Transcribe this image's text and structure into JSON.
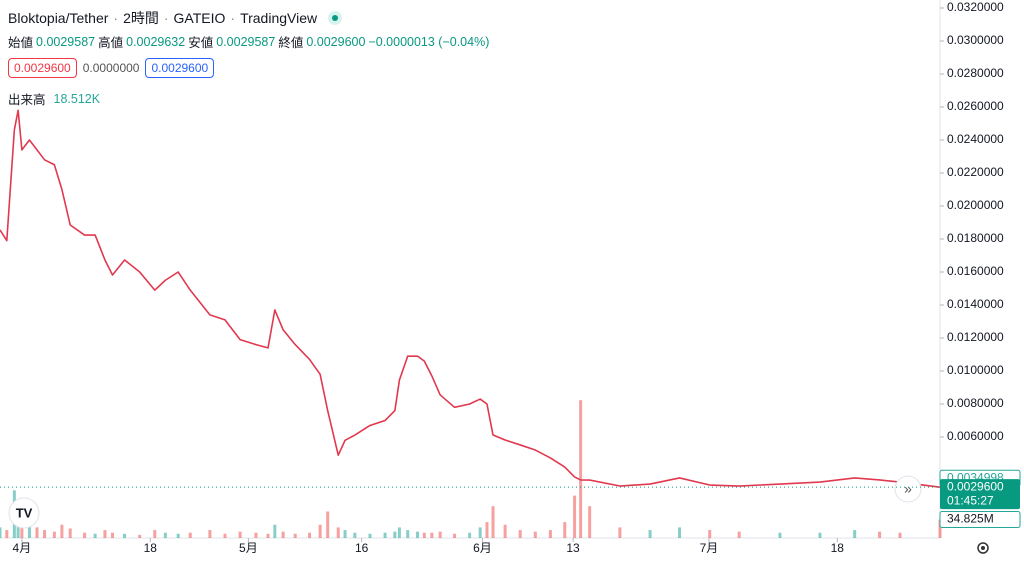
{
  "chart_data": {
    "type": "line",
    "header": {
      "symbol": "Bloktopia/Tether",
      "interval": "2時間",
      "exchange": "GATEIO",
      "source": "TradingView",
      "open_label": "始値",
      "open": "0.0029587",
      "high_label": "高値",
      "high": "0.0029632",
      "low_label": "安値",
      "low": "0.0029587",
      "close_label": "終値",
      "close": "0.0029600",
      "change": "−0.0000013 (−0.04%)",
      "bid": "0.0029600",
      "spread": "0.0000000",
      "ask": "0.0029600",
      "volume_label": "出来高",
      "volume": "18.512K"
    },
    "x": [
      -2.9,
      -2,
      -1,
      -0.5,
      0,
      1,
      2,
      3,
      4.3,
      5.3,
      6.4,
      8.3,
      9.7,
      11,
      12,
      13.6,
      15.6,
      17.6,
      19,
      20.7,
      22.3,
      24.9,
      26.9,
      28.9,
      31,
      32.6,
      33.5,
      34.6,
      36.2,
      38.1,
      39.5,
      40.5,
      41.9,
      42.8,
      44.1,
      46.1,
      48.1,
      49.4,
      50,
      51.1,
      52.4,
      53.3,
      54.3,
      55.4,
      57.3,
      59.3,
      60.7,
      61.6,
      62.4,
      64,
      66,
      68,
      70,
      71.9,
      73.2,
      74,
      75.2,
      79.2,
      83.2,
      87.1,
      91.1,
      95,
      100.4,
      105.7,
      110.3,
      113.6,
      116.3,
      121.6
    ],
    "series": [
      {
        "name": "Price",
        "color": "#e0394f",
        "values": [
          0.01855,
          0.0179,
          0.0246,
          0.0258,
          0.0234,
          0.024,
          0.0234,
          0.0228,
          0.0225,
          0.021,
          0.01885,
          0.01824,
          0.01824,
          0.01673,
          0.01582,
          0.01673,
          0.016,
          0.0149,
          0.0155,
          0.016,
          0.0149,
          0.0134,
          0.0131,
          0.0119,
          0.0116,
          0.0114,
          0.0137,
          0.0125,
          0.0116,
          0.0107,
          0.0098,
          0.0076,
          0.0049,
          0.0058,
          0.00612,
          0.0067,
          0.007,
          0.0076,
          0.00945,
          0.0109,
          0.0109,
          0.0106,
          0.0097,
          0.00855,
          0.0078,
          0.008,
          0.0083,
          0.008,
          0.00612,
          0.00582,
          0.00552,
          0.00521,
          0.00473,
          0.00418,
          0.00358,
          0.0034,
          0.00339,
          0.00303,
          0.00315,
          0.00352,
          0.00309,
          0.00303,
          0.00315,
          0.00327,
          0.00352,
          0.0034,
          0.00327,
          0.00296
        ]
      },
      {
        "name": "Volume",
        "axis": "y2",
        "values": [
          20,
          15,
          90,
          40,
          60,
          30,
          20,
          15,
          12,
          25,
          18,
          10,
          8,
          15,
          10,
          8,
          6,
          15,
          10,
          8,
          10,
          15,
          8,
          12,
          10,
          8,
          25,
          12,
          8,
          10,
          25,
          50,
          20,
          15,
          10,
          8,
          10,
          12,
          20,
          15,
          12,
          10,
          10,
          12,
          8,
          10,
          20,
          30,
          60,
          25,
          15,
          12,
          15,
          30,
          80,
          260,
          60,
          20,
          15,
          20,
          15,
          12,
          10,
          10,
          15,
          12,
          10,
          34.825
        ]
      }
    ],
    "up_color": "#26a69a",
    "down_color": "#ef5350",
    "xlim": [
      -2.9,
      121.6
    ],
    "xticks": [
      {
        "value": 0,
        "label": "4月"
      },
      {
        "value": 17,
        "label": "18"
      },
      {
        "value": 30,
        "label": "5月"
      },
      {
        "value": 45,
        "label": "16"
      },
      {
        "value": 61,
        "label": "6月"
      },
      {
        "value": 73,
        "label": "13"
      },
      {
        "value": 91,
        "label": "7月"
      },
      {
        "value": 108,
        "label": "18"
      }
    ],
    "ylim": [
      -0.00012,
      0.032
    ],
    "yticks": [
      {
        "value": 0.032,
        "label": "0.0320000"
      },
      {
        "value": 0.03,
        "label": "0.0300000"
      },
      {
        "value": 0.028,
        "label": "0.0280000"
      },
      {
        "value": 0.026,
        "label": "0.0260000"
      },
      {
        "value": 0.024,
        "label": "0.0240000"
      },
      {
        "value": 0.022,
        "label": "0.0220000"
      },
      {
        "value": 0.02,
        "label": "0.0200000"
      },
      {
        "value": 0.018,
        "label": "0.0180000"
      },
      {
        "value": 0.016,
        "label": "0.0160000"
      },
      {
        "value": 0.014,
        "label": "0.0140000"
      },
      {
        "value": 0.012,
        "label": "0.0120000"
      },
      {
        "value": 0.01,
        "label": "0.0100000"
      },
      {
        "value": 0.008,
        "label": "0.0080000"
      },
      {
        "value": 0.006,
        "label": "0.0060000"
      }
    ],
    "y2lim": [
      0,
      1000
    ],
    "price_markers": [
      {
        "value": 0.0034998,
        "label": "0.0034998"
      },
      {
        "value": 0.00296,
        "label": "0.0029600",
        "countdown": "01:45:27"
      }
    ],
    "volume_marker": {
      "value": 34.825,
      "label": "34.825M"
    },
    "grid": false
  }
}
